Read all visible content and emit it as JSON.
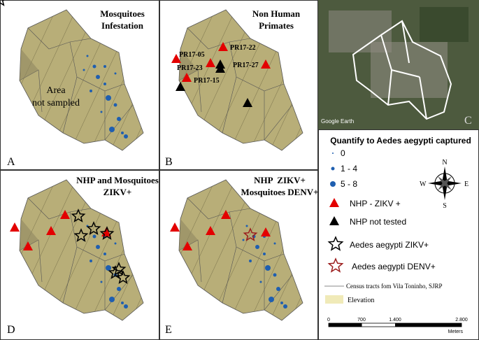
{
  "panels": {
    "a": {
      "title": [
        "Mosquitoes",
        "Infestation"
      ],
      "note": [
        "Area",
        "not sampled"
      ],
      "letter": "A"
    },
    "b": {
      "title": [
        "Non Human",
        "Primates"
      ],
      "sites": [
        "PR17-05",
        "PR17-22",
        "PR17-23",
        "PR17-27",
        "PR17-15"
      ],
      "letter": "B"
    },
    "c": {
      "credit": "Google Earth",
      "letter": "C"
    },
    "d": {
      "title": [
        "NHP and Mosquitoes",
        "ZIKV+"
      ],
      "letter": "D"
    },
    "e": {
      "title": [
        "NHP  ZIKV+",
        "Mosquitoes DENV+"
      ],
      "letter": "E"
    }
  },
  "legend": {
    "title": "Quantify to Aedes aegypti captured",
    "items": [
      "0",
      "1 - 4",
      "5 - 8",
      "NHP - ZIKV +",
      "NHP not tested",
      "Aedes aegypti ZIKV+",
      "Aedes aegypti DENV+",
      "Census tracts fom Vila Toninho, SJRP",
      "Elevation"
    ],
    "compass": {
      "n": "N",
      "s": "S",
      "e": "E",
      "w": "W"
    },
    "scale": {
      "ticks": [
        "0",
        "700",
        "1.400",
        "2.800"
      ],
      "unit": "Meters"
    }
  }
}
